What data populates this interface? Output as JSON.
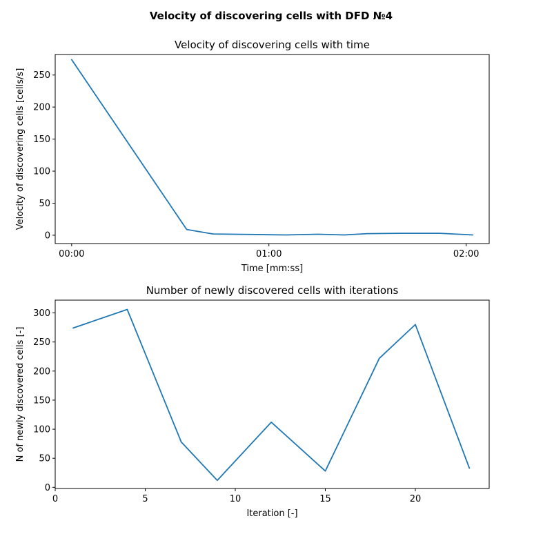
{
  "figure": {
    "suptitle": "Velocity of discovering cells with DFD №4"
  },
  "colors": {
    "series": "#1f77b4",
    "axis": "#000000",
    "background": "#ffffff"
  },
  "chart_data": [
    {
      "type": "line",
      "title": "Velocity of discovering cells with time",
      "xlabel": "Time [mm:ss]",
      "ylabel": "Velocity of discovering cells [cells/s]",
      "x_unit": "mm:ss",
      "xlim": [
        "-00:05",
        "02:07"
      ],
      "ylim": [
        -13,
        282
      ],
      "xticks": [
        "00:00",
        "01:00",
        "02:00"
      ],
      "yticks": [
        0,
        50,
        100,
        150,
        200,
        250
      ],
      "grid": false,
      "legend": false,
      "series": [
        {
          "x": [
            "00:00",
            "00:35",
            "00:43",
            "01:05",
            "01:15",
            "01:23",
            "01:30",
            "01:40",
            "01:52",
            "02:02"
          ],
          "y": [
            274,
            9,
            2,
            0.5,
            1.5,
            0.5,
            2.5,
            3,
            3,
            0.5
          ]
        }
      ]
    },
    {
      "type": "line",
      "title": "Number of newly discovered cells with iterations",
      "xlabel": "Iteration [-]",
      "ylabel": "N of newly discovered cells [-]",
      "xlim": [
        0,
        24.1
      ],
      "ylim": [
        -2,
        322
      ],
      "xticks": [
        0,
        5,
        10,
        15,
        20
      ],
      "yticks": [
        0,
        50,
        100,
        150,
        200,
        250,
        300
      ],
      "grid": false,
      "legend": false,
      "series": [
        {
          "x": [
            1,
            4,
            7,
            9,
            12,
            15,
            18,
            20,
            23
          ],
          "y": [
            274,
            306,
            78,
            12,
            112,
            28,
            222,
            280,
            33
          ]
        }
      ]
    }
  ]
}
